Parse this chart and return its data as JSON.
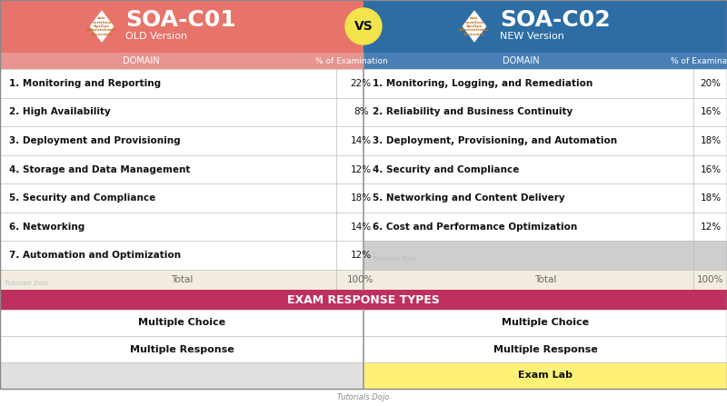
{
  "title_left": "SOA-C01",
  "subtitle_left": "OLD Version",
  "title_right": "SOA-C02",
  "subtitle_right": "NEW Version",
  "vs_text": "VS",
  "header_left_col1": "DOMAIN",
  "header_left_col2": "% of Examination",
  "header_right_col1": "DOMAIN",
  "header_right_col2": "% of Examination",
  "left_domains": [
    "1. Monitoring and Reporting",
    "2. High Availability",
    "3. Deployment and Provisioning",
    "4. Storage and Data Management",
    "5. Security and Compliance",
    "6. Networking",
    "7. Automation and Optimization"
  ],
  "left_pcts": [
    "22%",
    "8%",
    "14%",
    "12%",
    "18%",
    "14%",
    "12%"
  ],
  "right_domains": [
    "1. Monitoring, Logging, and Remediation",
    "2. Reliability and Business Continuity",
    "3. Deployment, Provisioning, and Automation",
    "4. Security and Compliance",
    "5. Networking and Content Delivery",
    "6. Cost and Performance Optimization"
  ],
  "right_pcts": [
    "20%",
    "16%",
    "18%",
    "16%",
    "18%",
    "12%"
  ],
  "total_label": "Total",
  "total_pct": "100%",
  "exam_section_title": "EXAM RESPONSE TYPES",
  "left_response_types": [
    "Multiple Choice",
    "Multiple Response",
    ""
  ],
  "right_response_types": [
    "Multiple Choice",
    "Multiple Response",
    "Exam Lab"
  ],
  "footer": "Tutorials Dojo",
  "bg_left_header": "#e8736a",
  "bg_right_header": "#2e6da4",
  "bg_col_header_left": "#e89490",
  "bg_col_header_right": "#4a7fb5",
  "bg_table_white": "#ffffff",
  "bg_total_row": "#f2ede0",
  "bg_gray_row": "#cfcdcd",
  "bg_exam_section": "#be3060",
  "bg_exam_lab": "#fff176",
  "bg_exam_gray": "#e0e0e0",
  "color_vs_bg": "#f2e44a",
  "text_dark": "#111111",
  "text_white": "#ffffff",
  "text_gray": "#666666",
  "border_dotted": "#bbbbbb",
  "divider_center": "#888888",
  "badge_text_color": "#c47022",
  "watermark_color": "#bbbbbb"
}
